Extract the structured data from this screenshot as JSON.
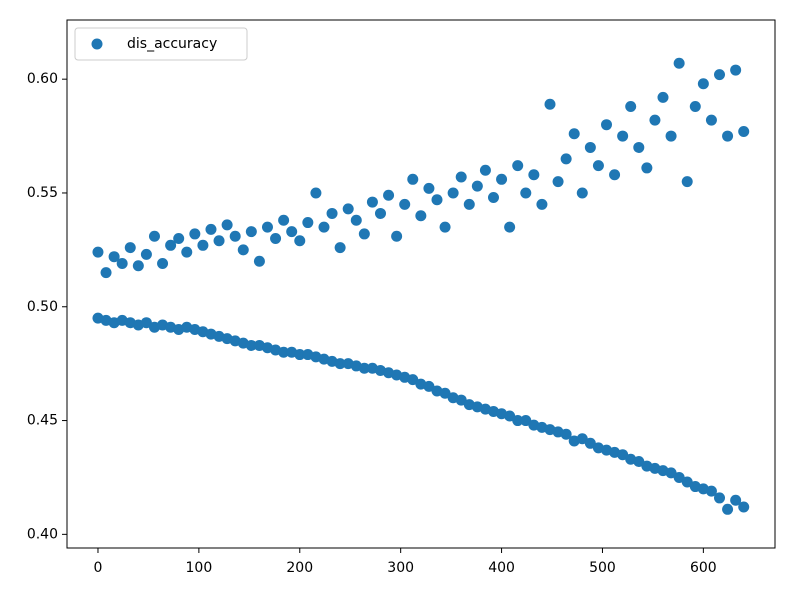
{
  "chart_data": {
    "type": "scatter",
    "x": [
      0,
      8,
      16,
      24,
      32,
      40,
      48,
      56,
      64,
      72,
      80,
      88,
      96,
      104,
      112,
      120,
      128,
      136,
      144,
      152,
      160,
      168,
      176,
      184,
      192,
      200,
      208,
      216,
      224,
      232,
      240,
      248,
      256,
      264,
      272,
      280,
      288,
      296,
      304,
      312,
      320,
      328,
      336,
      344,
      352,
      360,
      368,
      376,
      384,
      392,
      400,
      408,
      416,
      424,
      432,
      440,
      448,
      456,
      464,
      472,
      480,
      488,
      496,
      504,
      512,
      520,
      528,
      536,
      544,
      552,
      560,
      568,
      576,
      584,
      592,
      600,
      608,
      616,
      624,
      632,
      640,
      0,
      8,
      16,
      24,
      32,
      40,
      48,
      56,
      64,
      72,
      80,
      88,
      96,
      104,
      112,
      120,
      128,
      136,
      144,
      152,
      160,
      168,
      176,
      184,
      192,
      200,
      208,
      216,
      224,
      232,
      240,
      248,
      256,
      264,
      272,
      280,
      288,
      296,
      304,
      312,
      320,
      328,
      336,
      344,
      352,
      360,
      368,
      376,
      384,
      392,
      400,
      408,
      416,
      424,
      432,
      440,
      448,
      456,
      464,
      472,
      480,
      488,
      496,
      504,
      512,
      520,
      528,
      536,
      544,
      552,
      560,
      568,
      576,
      584,
      592,
      600,
      608,
      616,
      624,
      632,
      640
    ],
    "series": [
      {
        "name": "dis_accuracy",
        "color": "#1f77b4",
        "values": [
          0.524,
          0.515,
          0.522,
          0.519,
          0.526,
          0.518,
          0.523,
          0.531,
          0.519,
          0.527,
          0.53,
          0.524,
          0.532,
          0.527,
          0.534,
          0.529,
          0.536,
          0.531,
          0.525,
          0.533,
          0.52,
          0.535,
          0.53,
          0.538,
          0.533,
          0.529,
          0.537,
          0.55,
          0.535,
          0.541,
          0.526,
          0.543,
          0.538,
          0.532,
          0.546,
          0.541,
          0.549,
          0.531,
          0.545,
          0.556,
          0.54,
          0.552,
          0.547,
          0.535,
          0.55,
          0.557,
          0.545,
          0.553,
          0.56,
          0.548,
          0.556,
          0.535,
          0.562,
          0.55,
          0.558,
          0.545,
          0.589,
          0.555,
          0.565,
          0.576,
          0.55,
          0.57,
          0.562,
          0.58,
          0.558,
          0.575,
          0.588,
          0.57,
          0.561,
          0.582,
          0.592,
          0.575,
          0.607,
          0.555,
          0.588,
          0.598,
          0.582,
          0.602,
          0.575,
          0.604,
          0.577,
          0.495,
          0.494,
          0.493,
          0.494,
          0.493,
          0.492,
          0.493,
          0.491,
          0.492,
          0.491,
          0.49,
          0.491,
          0.49,
          0.489,
          0.488,
          0.487,
          0.486,
          0.485,
          0.484,
          0.483,
          0.483,
          0.482,
          0.481,
          0.48,
          0.48,
          0.479,
          0.479,
          0.478,
          0.477,
          0.476,
          0.475,
          0.475,
          0.474,
          0.473,
          0.473,
          0.472,
          0.471,
          0.47,
          0.469,
          0.468,
          0.466,
          0.465,
          0.463,
          0.462,
          0.46,
          0.459,
          0.457,
          0.456,
          0.455,
          0.454,
          0.453,
          0.452,
          0.45,
          0.45,
          0.448,
          0.447,
          0.446,
          0.445,
          0.444,
          0.441,
          0.442,
          0.44,
          0.438,
          0.437,
          0.436,
          0.435,
          0.433,
          0.432,
          0.43,
          0.429,
          0.428,
          0.427,
          0.425,
          0.423,
          0.421,
          0.42,
          0.419,
          0.416,
          0.411,
          0.415,
          0.412
        ]
      }
    ],
    "xlim": [
      -30.7,
      671
    ],
    "xticks": [
      0,
      100,
      200,
      300,
      400,
      500,
      600
    ],
    "ylim": [
      0.394,
      0.626
    ],
    "yticks": [
      {
        "value": 0.4,
        "label": "0.40"
      },
      {
        "value": 0.45,
        "label": "0.45"
      },
      {
        "value": 0.5,
        "label": "0.50"
      },
      {
        "value": 0.55,
        "label": "0.55"
      },
      {
        "value": 0.6,
        "label": "0.60"
      }
    ],
    "grid": false,
    "legend": "upper-left"
  }
}
